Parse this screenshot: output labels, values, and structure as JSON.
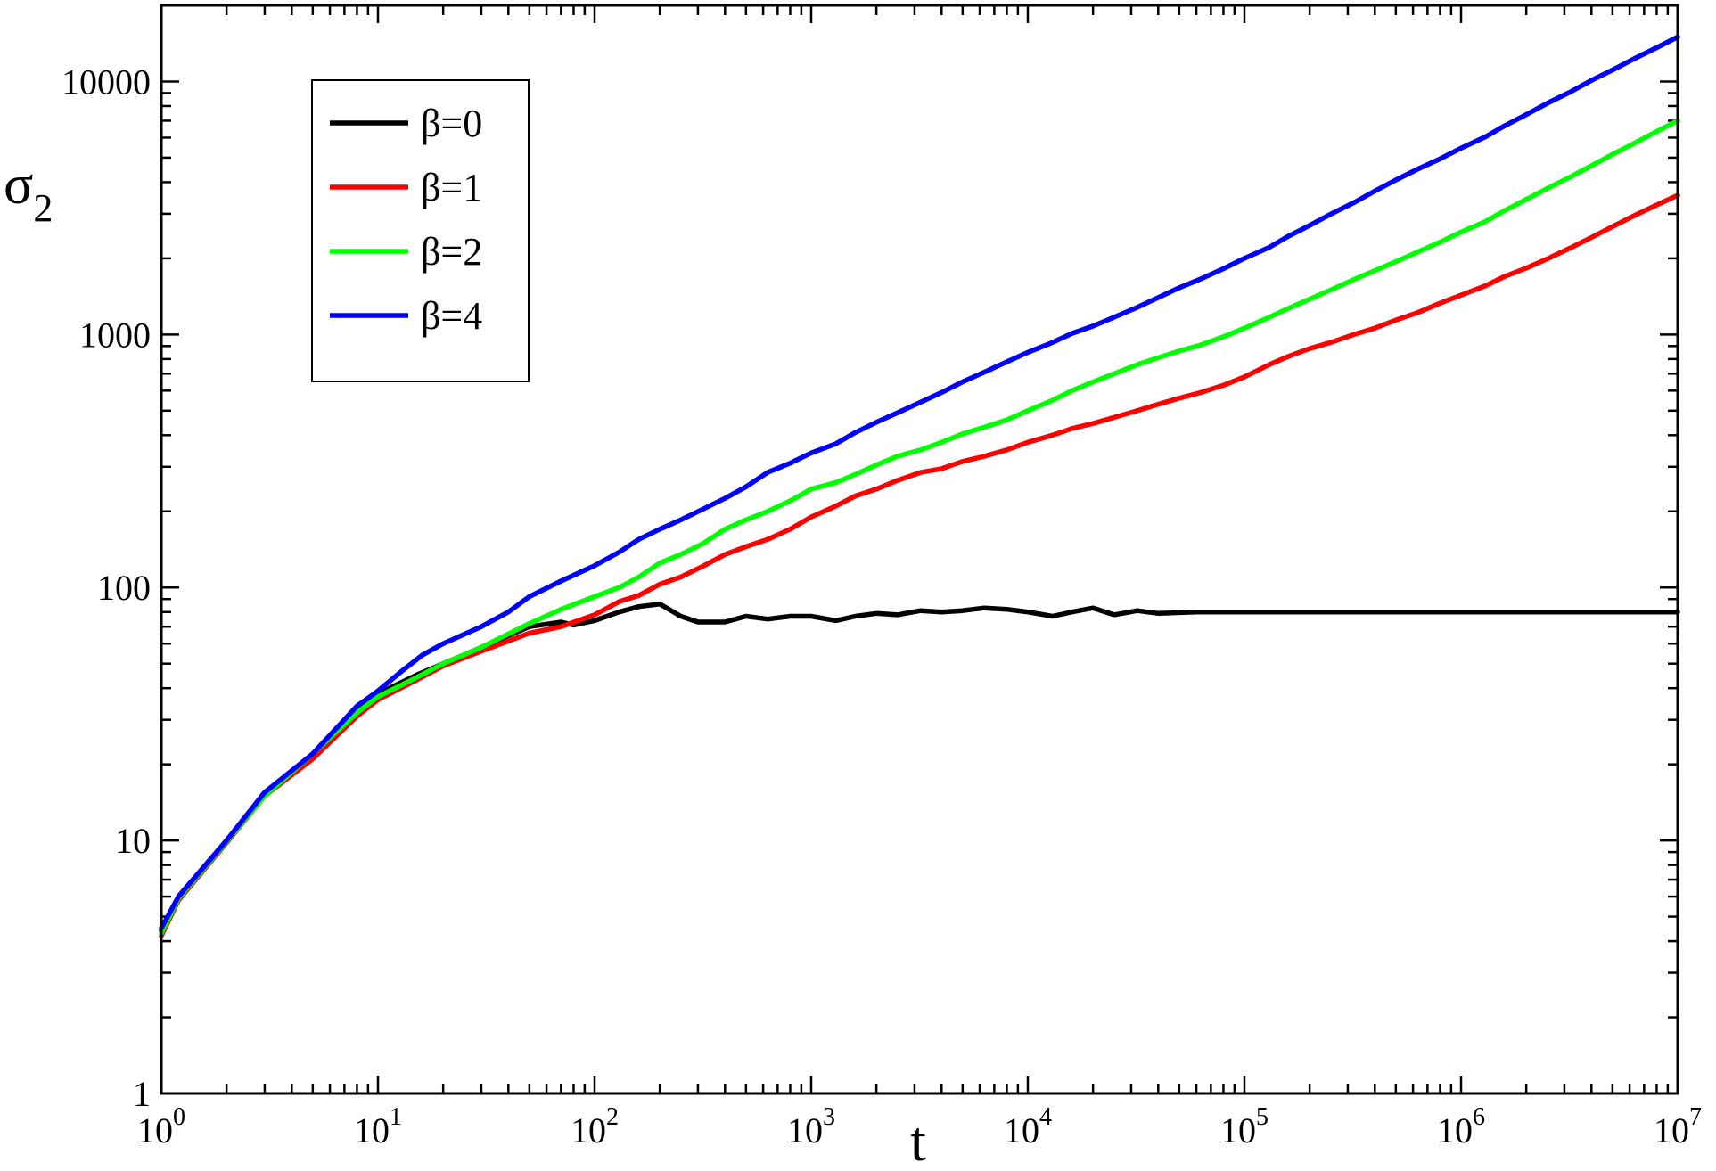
{
  "chart_data": {
    "type": "line",
    "xscale": "log",
    "yscale": "log",
    "xlim": [
      1,
      10000000
    ],
    "ylim": [
      1,
      20000
    ],
    "xlabel": "t",
    "ylabel": {
      "base": "σ",
      "sub": "2"
    },
    "x_ticks": [
      {
        "value": 1,
        "base": "10",
        "exp": "0"
      },
      {
        "value": 10,
        "base": "10",
        "exp": "1"
      },
      {
        "value": 100,
        "base": "10",
        "exp": "2"
      },
      {
        "value": 1000,
        "base": "10",
        "exp": "3"
      },
      {
        "value": 10000,
        "base": "10",
        "exp": "4"
      },
      {
        "value": 100000,
        "base": "10",
        "exp": "5"
      },
      {
        "value": 1000000,
        "base": "10",
        "exp": "6"
      },
      {
        "value": 10000000,
        "base": "10",
        "exp": "7"
      }
    ],
    "y_ticks": [
      {
        "value": 1,
        "label": "1"
      },
      {
        "value": 10,
        "label": "10"
      },
      {
        "value": 100,
        "label": "100"
      },
      {
        "value": 1000,
        "label": "1000"
      },
      {
        "value": 10000,
        "label": "10000"
      }
    ],
    "grid": false,
    "legend_position": "top-left",
    "series": [
      {
        "name": "β=0",
        "color": "#000000",
        "points": [
          [
            1,
            4.4
          ],
          [
            1.2,
            6
          ],
          [
            2,
            10
          ],
          [
            3,
            15
          ],
          [
            5,
            22
          ],
          [
            8,
            33
          ],
          [
            10,
            38
          ],
          [
            15,
            45
          ],
          [
            20,
            50
          ],
          [
            30,
            58
          ],
          [
            50,
            70
          ],
          [
            70,
            73
          ],
          [
            80,
            71
          ],
          [
            100,
            74
          ],
          [
            130,
            80
          ],
          [
            160,
            84
          ],
          [
            200,
            86
          ],
          [
            250,
            77
          ],
          [
            300,
            73
          ],
          [
            400,
            73
          ],
          [
            500,
            77
          ],
          [
            630,
            75
          ],
          [
            800,
            77
          ],
          [
            1000,
            77
          ],
          [
            1300,
            74
          ],
          [
            1600,
            77
          ],
          [
            2000,
            79
          ],
          [
            2500,
            78
          ],
          [
            3200,
            81
          ],
          [
            4000,
            80
          ],
          [
            5000,
            81
          ],
          [
            6300,
            83
          ],
          [
            8000,
            82
          ],
          [
            10000,
            80
          ],
          [
            13000,
            77
          ],
          [
            16000,
            80
          ],
          [
            20000,
            83
          ],
          [
            25000,
            78
          ],
          [
            32000,
            81
          ],
          [
            40000,
            79
          ],
          [
            60000,
            80
          ],
          [
            100000,
            80
          ],
          [
            300000,
            80
          ],
          [
            1000000,
            80
          ],
          [
            10000000,
            80
          ]
        ]
      },
      {
        "name": "β=1",
        "color": "#ff0000",
        "points": [
          [
            1,
            4.2
          ],
          [
            1.2,
            5.8
          ],
          [
            2,
            9.8
          ],
          [
            3,
            15
          ],
          [
            5,
            21
          ],
          [
            8,
            31
          ],
          [
            10,
            36
          ],
          [
            15,
            43
          ],
          [
            20,
            49
          ],
          [
            30,
            56
          ],
          [
            50,
            66
          ],
          [
            70,
            70
          ],
          [
            100,
            78
          ],
          [
            130,
            88
          ],
          [
            160,
            93
          ],
          [
            200,
            103
          ],
          [
            250,
            110
          ],
          [
            320,
            122
          ],
          [
            400,
            135
          ],
          [
            500,
            145
          ],
          [
            630,
            155
          ],
          [
            800,
            170
          ],
          [
            1000,
            190
          ],
          [
            1300,
            210
          ],
          [
            1600,
            230
          ],
          [
            2000,
            245
          ],
          [
            2500,
            265
          ],
          [
            3200,
            285
          ],
          [
            4000,
            295
          ],
          [
            5000,
            315
          ],
          [
            6300,
            330
          ],
          [
            8000,
            350
          ],
          [
            10000,
            375
          ],
          [
            13000,
            400
          ],
          [
            16000,
            425
          ],
          [
            20000,
            445
          ],
          [
            25000,
            470
          ],
          [
            32000,
            500
          ],
          [
            40000,
            530
          ],
          [
            50000,
            560
          ],
          [
            63000,
            590
          ],
          [
            80000,
            630
          ],
          [
            100000,
            680
          ],
          [
            130000,
            760
          ],
          [
            160000,
            820
          ],
          [
            200000,
            880
          ],
          [
            250000,
            930
          ],
          [
            320000,
            1000
          ],
          [
            400000,
            1060
          ],
          [
            500000,
            1140
          ],
          [
            630000,
            1220
          ],
          [
            800000,
            1330
          ],
          [
            1000000,
            1430
          ],
          [
            1300000,
            1560
          ],
          [
            1600000,
            1700
          ],
          [
            2000000,
            1830
          ],
          [
            2500000,
            1990
          ],
          [
            3200000,
            2200
          ],
          [
            4000000,
            2420
          ],
          [
            5000000,
            2670
          ],
          [
            6300000,
            2950
          ],
          [
            8000000,
            3250
          ],
          [
            10000000,
            3550
          ]
        ]
      },
      {
        "name": "β=2",
        "color": "#00ff00",
        "points": [
          [
            1,
            4.3
          ],
          [
            1.2,
            5.9
          ],
          [
            2,
            9.9
          ],
          [
            3,
            15
          ],
          [
            5,
            22
          ],
          [
            8,
            32
          ],
          [
            10,
            37
          ],
          [
            15,
            44
          ],
          [
            20,
            50
          ],
          [
            30,
            58
          ],
          [
            50,
            72
          ],
          [
            70,
            82
          ],
          [
            100,
            92
          ],
          [
            130,
            100
          ],
          [
            160,
            110
          ],
          [
            200,
            125
          ],
          [
            250,
            135
          ],
          [
            320,
            150
          ],
          [
            400,
            170
          ],
          [
            500,
            185
          ],
          [
            630,
            200
          ],
          [
            800,
            220
          ],
          [
            1000,
            245
          ],
          [
            1300,
            260
          ],
          [
            1600,
            280
          ],
          [
            2000,
            305
          ],
          [
            2500,
            330
          ],
          [
            3200,
            350
          ],
          [
            4000,
            375
          ],
          [
            5000,
            405
          ],
          [
            6300,
            430
          ],
          [
            8000,
            460
          ],
          [
            10000,
            500
          ],
          [
            13000,
            550
          ],
          [
            16000,
            600
          ],
          [
            20000,
            650
          ],
          [
            25000,
            700
          ],
          [
            32000,
            760
          ],
          [
            40000,
            810
          ],
          [
            50000,
            860
          ],
          [
            63000,
            910
          ],
          [
            80000,
            980
          ],
          [
            100000,
            1060
          ],
          [
            130000,
            1170
          ],
          [
            160000,
            1270
          ],
          [
            200000,
            1380
          ],
          [
            250000,
            1500
          ],
          [
            320000,
            1650
          ],
          [
            400000,
            1790
          ],
          [
            500000,
            1940
          ],
          [
            630000,
            2120
          ],
          [
            800000,
            2320
          ],
          [
            1000000,
            2540
          ],
          [
            1300000,
            2800
          ],
          [
            1600000,
            3100
          ],
          [
            2000000,
            3420
          ],
          [
            2500000,
            3780
          ],
          [
            3200000,
            4200
          ],
          [
            4000000,
            4650
          ],
          [
            5000000,
            5150
          ],
          [
            6300000,
            5700
          ],
          [
            8000000,
            6350
          ],
          [
            10000000,
            7000
          ]
        ]
      },
      {
        "name": "β=4",
        "color": "#0000ff",
        "points": [
          [
            1,
            4.5
          ],
          [
            1.2,
            6
          ],
          [
            2,
            10
          ],
          [
            3,
            15.5
          ],
          [
            5,
            22
          ],
          [
            8,
            34
          ],
          [
            10,
            39
          ],
          [
            13,
            47
          ],
          [
            16,
            54
          ],
          [
            20,
            60
          ],
          [
            30,
            70
          ],
          [
            40,
            80
          ],
          [
            50,
            92
          ],
          [
            70,
            106
          ],
          [
            100,
            122
          ],
          [
            130,
            138
          ],
          [
            160,
            155
          ],
          [
            200,
            170
          ],
          [
            250,
            185
          ],
          [
            320,
            205
          ],
          [
            400,
            225
          ],
          [
            500,
            250
          ],
          [
            630,
            285
          ],
          [
            800,
            310
          ],
          [
            1000,
            340
          ],
          [
            1300,
            370
          ],
          [
            1600,
            410
          ],
          [
            2000,
            450
          ],
          [
            2500,
            490
          ],
          [
            3200,
            540
          ],
          [
            4000,
            590
          ],
          [
            5000,
            650
          ],
          [
            6300,
            710
          ],
          [
            8000,
            780
          ],
          [
            10000,
            850
          ],
          [
            13000,
            930
          ],
          [
            16000,
            1010
          ],
          [
            20000,
            1080
          ],
          [
            25000,
            1170
          ],
          [
            32000,
            1280
          ],
          [
            40000,
            1400
          ],
          [
            50000,
            1530
          ],
          [
            63000,
            1660
          ],
          [
            80000,
            1820
          ],
          [
            100000,
            2000
          ],
          [
            130000,
            2210
          ],
          [
            160000,
            2450
          ],
          [
            200000,
            2700
          ],
          [
            250000,
            2990
          ],
          [
            320000,
            3320
          ],
          [
            400000,
            3690
          ],
          [
            500000,
            4080
          ],
          [
            630000,
            4500
          ],
          [
            800000,
            4950
          ],
          [
            1000000,
            5450
          ],
          [
            1300000,
            6050
          ],
          [
            1600000,
            6700
          ],
          [
            2000000,
            7400
          ],
          [
            2500000,
            8200
          ],
          [
            3200000,
            9100
          ],
          [
            4000000,
            10100
          ],
          [
            5000000,
            11100
          ],
          [
            6300000,
            12300
          ],
          [
            8000000,
            13600
          ],
          [
            10000000,
            15000
          ]
        ]
      }
    ]
  }
}
